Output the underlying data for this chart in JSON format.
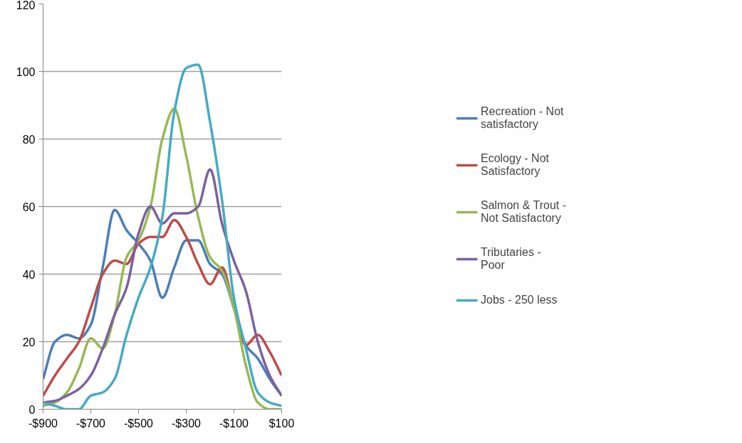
{
  "chart_data": {
    "type": "line",
    "x": [
      -900,
      -850,
      -800,
      -750,
      -700,
      -650,
      -600,
      -550,
      -500,
      -450,
      -400,
      -350,
      -300,
      -250,
      -200,
      -150,
      -100,
      -50,
      0,
      50,
      100
    ],
    "series": [
      {
        "name": "Recreation - Not satisfactory",
        "color": "#4a7ebb",
        "values": [
          9,
          20,
          22,
          21,
          25,
          42,
          59,
          53,
          49,
          44,
          33,
          42,
          50,
          50,
          43,
          40,
          30,
          19,
          15,
          9,
          4
        ]
      },
      {
        "name": "Ecology - Not Satisfactory",
        "color": "#be4b48",
        "values": [
          4,
          10,
          15,
          20,
          30,
          40,
          44,
          43,
          49,
          51,
          51,
          56,
          51,
          43,
          37,
          42,
          30,
          19,
          22,
          17,
          10
        ]
      },
      {
        "name": "Salmon & Trout - Not Satisfactory",
        "color": "#98b954",
        "values": [
          1,
          2,
          5,
          12,
          21,
          18,
          28,
          45,
          50,
          60,
          80,
          89,
          75,
          57,
          45,
          41,
          30,
          13,
          2,
          0,
          0
        ]
      },
      {
        "name": "Tributaries - Poor",
        "color": "#7d60a0",
        "values": [
          2,
          2.5,
          4,
          6,
          10,
          18,
          28,
          36,
          52,
          60,
          55,
          58,
          58,
          60,
          71,
          55,
          44,
          35,
          20,
          10,
          4
        ]
      },
      {
        "name": "Jobs - 250 less",
        "color": "#46aac5",
        "values": [
          2,
          1,
          0,
          0,
          4,
          5,
          9,
          22,
          33,
          42,
          57,
          88,
          101,
          102,
          85,
          62,
          33,
          18,
          5,
          2,
          1
        ]
      }
    ],
    "xlim": [
      -900,
      100
    ],
    "ylim": [
      0,
      120
    ],
    "xticks": [
      {
        "value": -900,
        "label": "-$900"
      },
      {
        "value": -700,
        "label": "-$700"
      },
      {
        "value": -500,
        "label": "-$500"
      },
      {
        "value": -300,
        "label": "-$300"
      },
      {
        "value": -100,
        "label": "-$100"
      },
      {
        "value": 100,
        "label": "$100"
      }
    ],
    "yticks": [
      0,
      20,
      40,
      60,
      80,
      100,
      120
    ],
    "grid": "y",
    "legend": "right",
    "marker": "none",
    "line_style": "solid"
  }
}
